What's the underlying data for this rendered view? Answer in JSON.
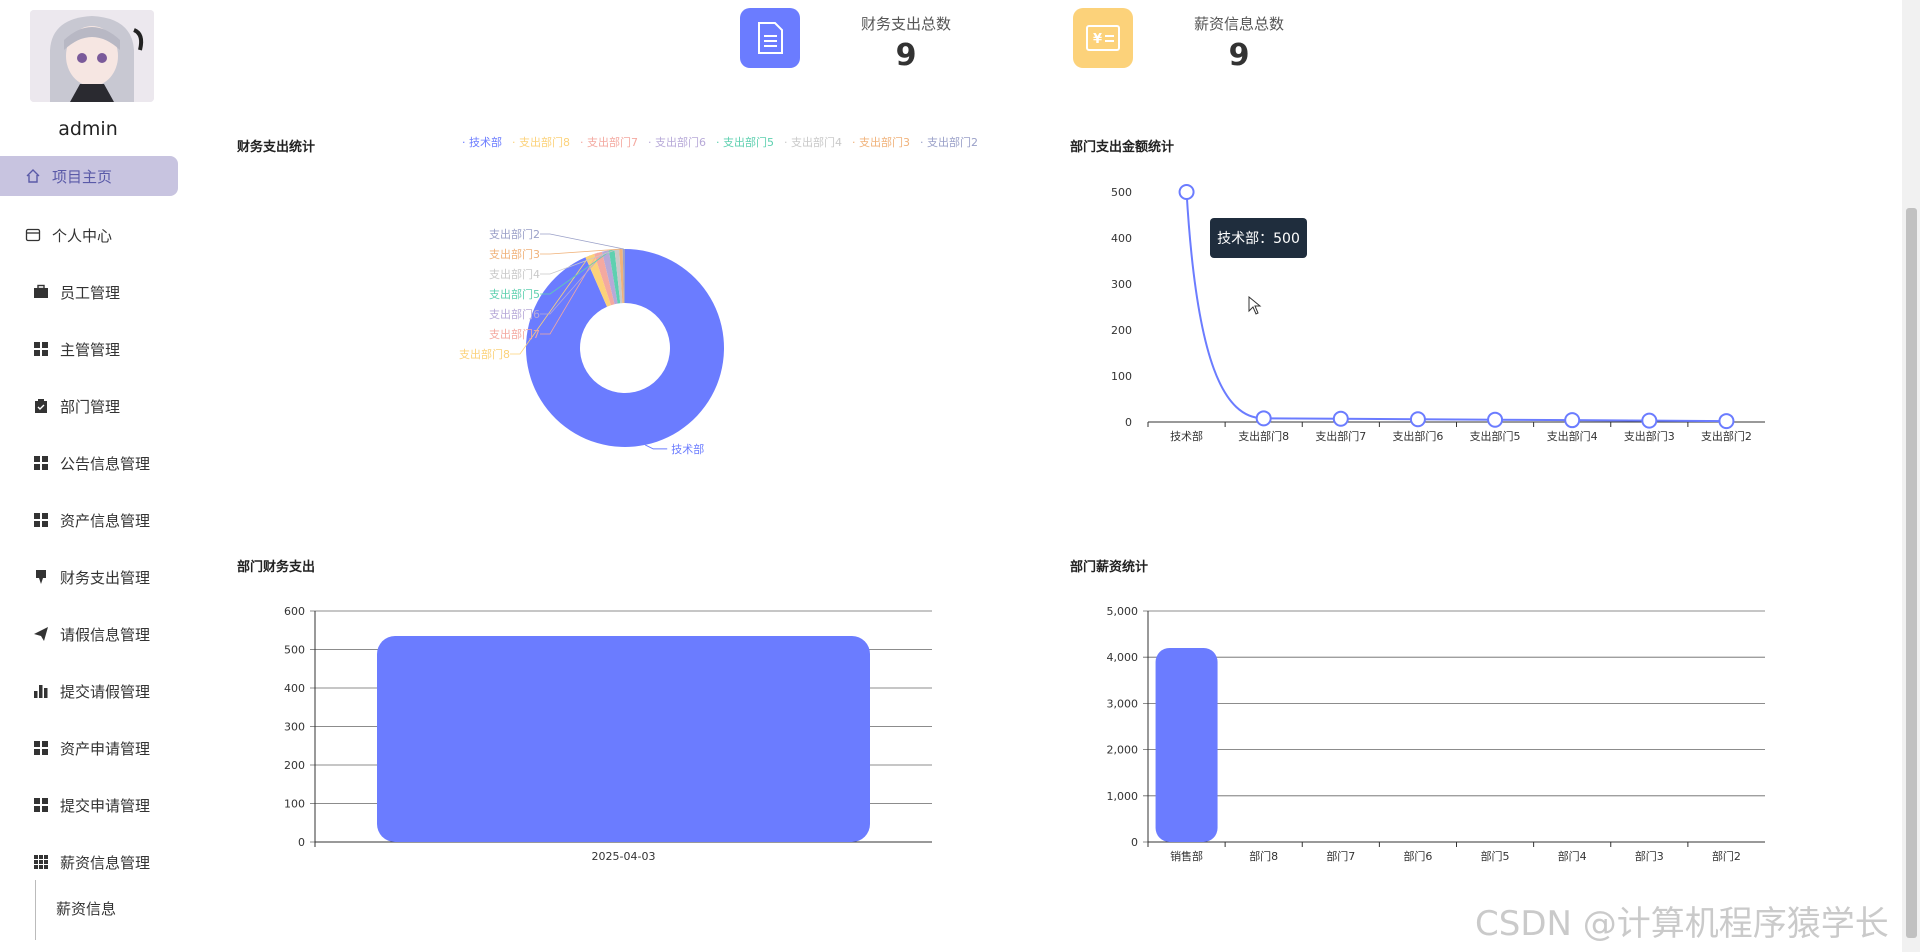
{
  "sidebar": {
    "username": "admin",
    "items": [
      {
        "label": "项目主页",
        "icon": "home-icon"
      },
      {
        "label": "个人中心",
        "icon": "card-icon"
      },
      {
        "label": "员工管理",
        "icon": "briefcase-icon"
      },
      {
        "label": "主管管理",
        "icon": "grid-icon"
      },
      {
        "label": "部门管理",
        "icon": "clipboard-icon"
      },
      {
        "label": "公告信息管理",
        "icon": "grid-icon"
      },
      {
        "label": "资产信息管理",
        "icon": "grid-icon"
      },
      {
        "label": "财务支出管理",
        "icon": "pin-icon"
      },
      {
        "label": "请假信息管理",
        "icon": "send-icon"
      },
      {
        "label": "提交请假管理",
        "icon": "bar-chart-icon"
      },
      {
        "label": "资产申请管理",
        "icon": "grid-icon"
      },
      {
        "label": "提交申请管理",
        "icon": "grid-icon"
      },
      {
        "label": "薪资信息管理",
        "icon": "grid9-icon"
      }
    ],
    "sub_item": "薪资信息"
  },
  "stats": [
    {
      "label": "财务支出总数",
      "value": "9",
      "icon": "document-icon",
      "color": "#6b7cff"
    },
    {
      "label": "薪资信息总数",
      "value": "9",
      "icon": "money-card-icon",
      "color": "#fcd27a"
    }
  ],
  "tooltip": "技术部：500",
  "watermark": "CSDN @计算机程序猿学长",
  "chart_data": [
    {
      "type": "pie",
      "title": "财务支出统计",
      "categories": [
        "技术部",
        "支出部门8",
        "支出部门7",
        "支出部门6",
        "支出部门5",
        "支出部门4",
        "支出部门3",
        "支出部门2"
      ],
      "values": [
        500,
        8,
        7,
        6,
        5,
        4,
        3,
        2
      ],
      "colors": [
        "#6b7cff",
        "#fcd27a",
        "#f4a9a0",
        "#b7a9d8",
        "#5ed0b0",
        "#c9c9c9",
        "#f0b27a",
        "#9aa0c8"
      ],
      "legend": "top"
    },
    {
      "type": "line",
      "title": "部门支出金额统计",
      "categories": [
        "技术部",
        "支出部门8",
        "支出部门7",
        "支出部门6",
        "支出部门5",
        "支出部门4",
        "支出部门3",
        "支出部门2"
      ],
      "values": [
        500,
        8,
        7,
        6,
        5,
        4,
        3,
        2
      ],
      "yticks": [
        "0",
        "100",
        "200",
        "300",
        "400",
        "500"
      ],
      "ylim": [
        0,
        500
      ]
    },
    {
      "type": "bar",
      "title": "部门财务支出",
      "categories": [
        "2025-04-03"
      ],
      "values": [
        535
      ],
      "yticks": [
        "0",
        "100",
        "200",
        "300",
        "400",
        "500",
        "600"
      ],
      "ylim": [
        0,
        600
      ]
    },
    {
      "type": "bar",
      "title": "部门薪资统计",
      "categories": [
        "销售部",
        "部门8",
        "部门7",
        "部门6",
        "部门5",
        "部门4",
        "部门3",
        "部门2"
      ],
      "values": [
        4200,
        0,
        0,
        0,
        0,
        0,
        0,
        0
      ],
      "yticks": [
        "0",
        "1,000",
        "2,000",
        "3,000",
        "4,000",
        "5,000"
      ],
      "ylim": [
        0,
        5000
      ]
    }
  ]
}
